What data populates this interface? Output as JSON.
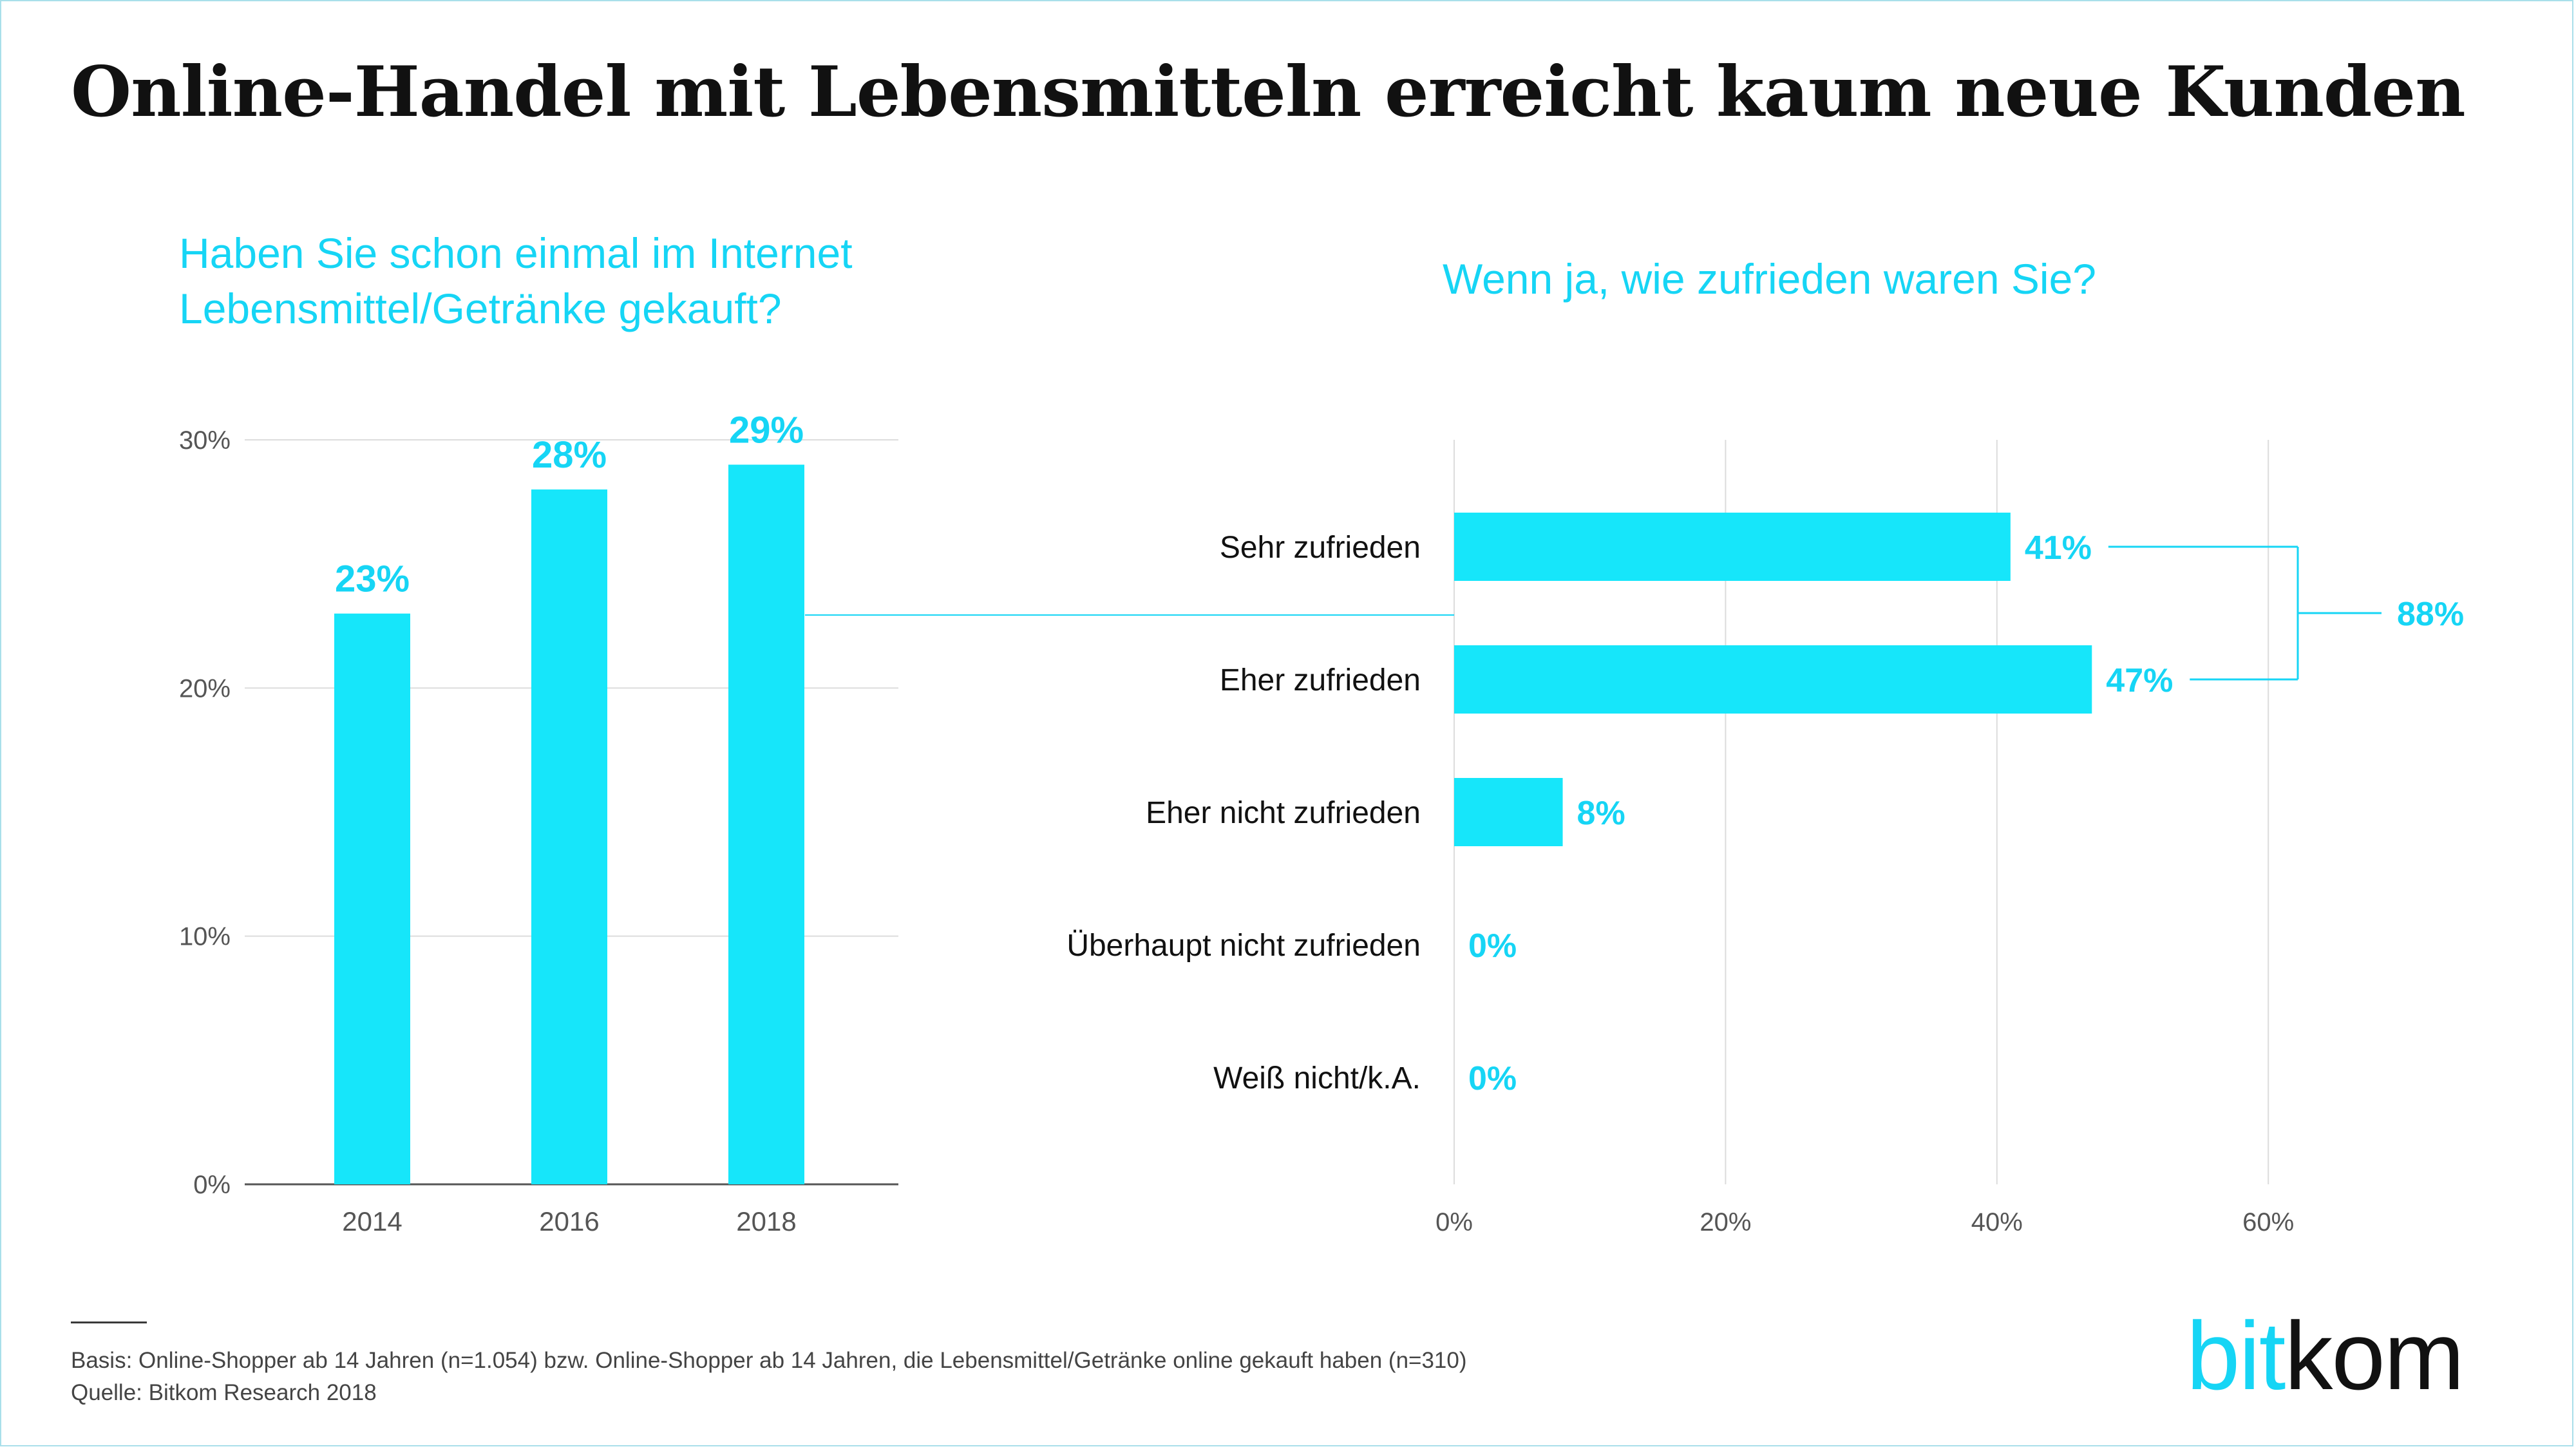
{
  "title": "Online-Handel mit Lebensmitteln erreicht kaum neue Kunden",
  "colors": {
    "bar": "#16e6fa",
    "value_label": "#16d5f5",
    "question": "#16d5f5",
    "grid": "#dcdcdc",
    "axis_text": "#555555",
    "category_text": "#111111",
    "connector": "#16d5f5"
  },
  "chart_data": [
    {
      "type": "bar",
      "title": "Haben Sie schon einmal im Internet Lebensmittel/Getränke gekauft?",
      "title_lines": [
        "Haben Sie schon einmal im Internet",
        "Lebensmittel/Getränke gekauft?"
      ],
      "categories": [
        "2014",
        "2016",
        "2018"
      ],
      "values": [
        23,
        28,
        29
      ],
      "value_labels": [
        "23%",
        "28%",
        "29%"
      ],
      "ylim": [
        0,
        30
      ],
      "yticks": [
        0,
        10,
        20,
        30
      ],
      "ytick_labels": [
        "0%",
        "10%",
        "20%",
        "30%"
      ],
      "xlabel": "",
      "ylabel": "",
      "grid": true
    },
    {
      "type": "bar",
      "orientation": "horizontal",
      "title": "Wenn ja, wie zufrieden waren Sie?",
      "categories": [
        "Sehr zufrieden",
        "Eher zufrieden",
        "Eher nicht zufrieden",
        "Überhaupt nicht zufrieden",
        "Weiß nicht/k.A."
      ],
      "values": [
        41,
        47,
        8,
        0,
        0
      ],
      "value_labels": [
        "41%",
        "47%",
        "8%",
        "0%",
        "0%"
      ],
      "xlim": [
        0,
        60
      ],
      "xticks": [
        0,
        20,
        40,
        60
      ],
      "xtick_labels": [
        "0%",
        "20%",
        "40%",
        "60%"
      ],
      "xlabel": "",
      "ylabel": "",
      "grid": true,
      "bracket": {
        "label": "88%",
        "spans": [
          "Sehr zufrieden",
          "Eher zufrieden"
        ]
      }
    }
  ],
  "footer": {
    "basis": "Basis: Online-Shopper ab 14 Jahren (n=1.054) bzw. Online-Shopper ab 14 Jahren, die Lebensmittel/Getränke online gekauft haben (n=310)",
    "source": "Quelle: Bitkom Research 2018"
  },
  "logo": {
    "text_part1": "bit",
    "text_part2": "kom"
  }
}
